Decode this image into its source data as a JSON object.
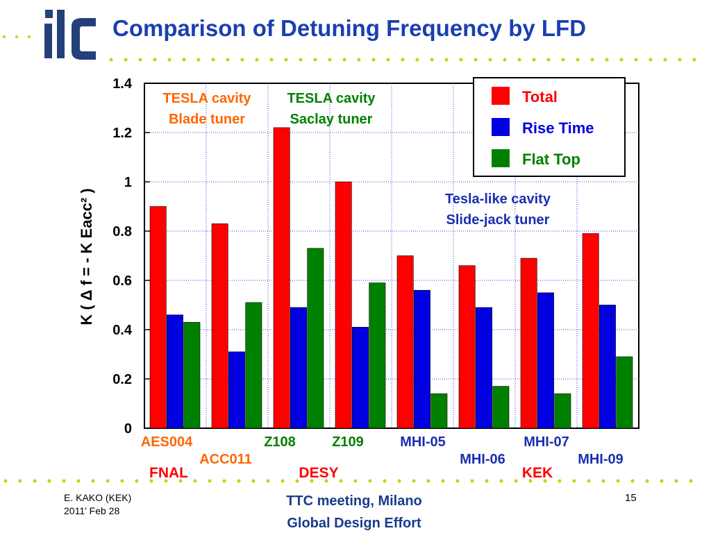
{
  "slide": {
    "title": "Comparison of Detuning Frequency by LFD",
    "logo_text": "ilc"
  },
  "footer": {
    "author": "E. KAKO (KEK)",
    "date": "2011' Feb 28",
    "meeting": "TTC meeting, Milano",
    "organization": "Global Design Effort",
    "page_number": "15"
  },
  "colors": {
    "title": "#1a3fb0",
    "total": "#ff0000",
    "rise_time": "#0000e0",
    "flat_top": "#008000",
    "dots": "#c8d200"
  },
  "chart_data": {
    "type": "bar",
    "ylabel": "K ( Δ f = - K Eacc² )",
    "ylim": [
      0,
      1.4
    ],
    "yticks": [
      "0",
      "0.2",
      "0.4",
      "0.6",
      "0.8",
      "1",
      "1.2",
      "1.4"
    ],
    "grid": true,
    "legend_position": "top-right",
    "categories": [
      "AES004",
      "ACC011",
      "Z108",
      "Z109",
      "MHI-05",
      "MHI-06",
      "MHI-07",
      "MHI-09"
    ],
    "series": [
      {
        "name": "Total",
        "values": [
          0.9,
          0.83,
          1.22,
          1.0,
          0.7,
          0.66,
          0.69,
          0.79
        ]
      },
      {
        "name": "Rise Time",
        "values": [
          0.46,
          0.31,
          0.49,
          0.41,
          0.56,
          0.49,
          0.55,
          0.5
        ]
      },
      {
        "name": "Flat Top",
        "values": [
          0.43,
          0.51,
          0.73,
          0.59,
          0.14,
          0.17,
          0.14,
          0.29
        ]
      }
    ],
    "annotations": [
      {
        "line1": "TESLA cavity",
        "line2": "Blade tuner",
        "color": "#ff6600"
      },
      {
        "line1": "TESLA cavity",
        "line2": "Saclay tuner",
        "color": "#008000"
      },
      {
        "line1": "Tesla-like cavity",
        "line2": "Slide-jack tuner",
        "color": "#1a2fb0"
      }
    ],
    "category_label_colors": [
      "#ff6600",
      "#ff6600",
      "#008000",
      "#008000",
      "#1a2fb0",
      "#1a2fb0",
      "#1a2fb0",
      "#1a2fb0"
    ],
    "groups": [
      {
        "name": "FNAL",
        "color": "#ff0000"
      },
      {
        "name": "DESY",
        "color": "#ff0000"
      },
      {
        "name": "KEK",
        "color": "#ff0000"
      }
    ]
  }
}
